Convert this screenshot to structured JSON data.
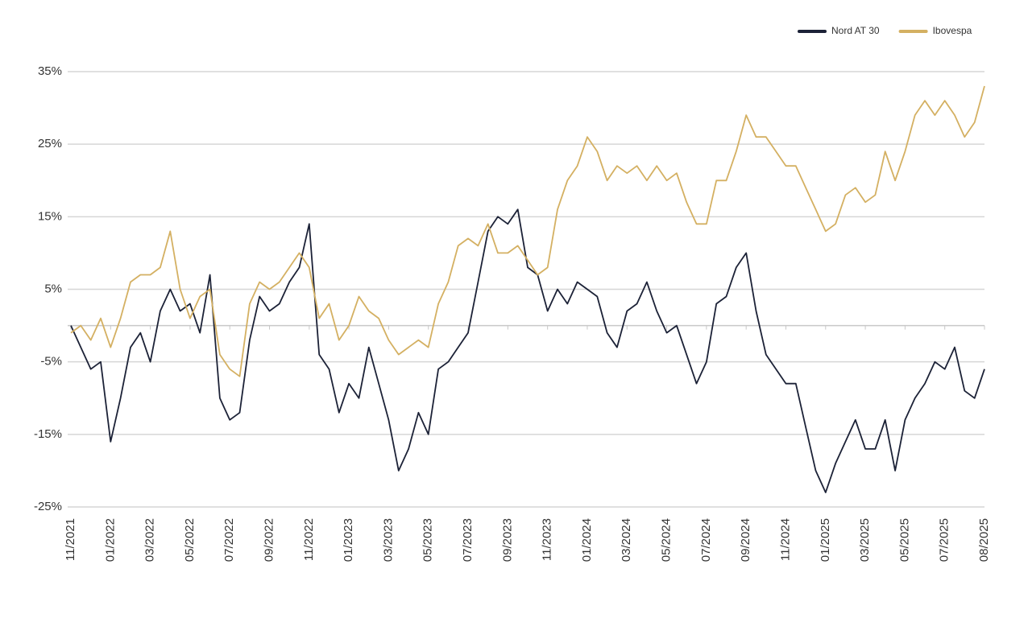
{
  "chart_data": {
    "type": "line",
    "categories": [
      "11/2021",
      null,
      null,
      null,
      "01/2022",
      null,
      null,
      null,
      "03/2022",
      null,
      null,
      null,
      "05/2022",
      null,
      null,
      null,
      "07/2022",
      null,
      null,
      null,
      "09/2022",
      null,
      null,
      null,
      "11/2022",
      null,
      null,
      null,
      "01/2023",
      null,
      null,
      null,
      "03/2023",
      null,
      null,
      null,
      "05/2023",
      null,
      null,
      null,
      "07/2023",
      null,
      null,
      null,
      "09/2023",
      null,
      null,
      null,
      "11/2023",
      null,
      null,
      null,
      "01/2024",
      null,
      null,
      null,
      "03/2024",
      null,
      null,
      null,
      "05/2024",
      null,
      null,
      null,
      "07/2024",
      null,
      null,
      null,
      "09/2024",
      null,
      null,
      null,
      "11/2024",
      null,
      null,
      null,
      "01/2025",
      null,
      null,
      null,
      "03/2025",
      null,
      null,
      null,
      "05/2025",
      null,
      null,
      null,
      "07/2025",
      null,
      null,
      null,
      "08/2025"
    ],
    "series": [
      {
        "name": "Nord AT 30",
        "color": "#1c2237",
        "values": [
          0,
          -3,
          -6,
          -5,
          -16,
          -10,
          -3,
          -1,
          -5,
          2,
          5,
          2,
          3,
          -1,
          7,
          -10,
          -13,
          -12,
          -2,
          4,
          2,
          3,
          6,
          8,
          14,
          -4,
          -6,
          -12,
          -8,
          -10,
          -3,
          -8,
          -13,
          -20,
          -17,
          -12,
          -15,
          -6,
          -5,
          -3,
          -1,
          6,
          13,
          15,
          14,
          16,
          8,
          7,
          2,
          5,
          3,
          6,
          5,
          4,
          -1,
          -3,
          2,
          3,
          6,
          2,
          -1,
          0,
          -4,
          -8,
          -5,
          3,
          4,
          8,
          10,
          2,
          -4,
          -6,
          -8,
          -8,
          -14,
          -20,
          -23,
          -19,
          -16,
          -13,
          -17,
          -17,
          -13,
          -20,
          -13,
          -10,
          -8,
          -5,
          -6,
          -3,
          -9,
          -10,
          -6
        ]
      },
      {
        "name": "Ibovespa",
        "color": "#d4b062",
        "values": [
          -1,
          0,
          -2,
          1,
          -3,
          1,
          6,
          7,
          7,
          8,
          13,
          5,
          1,
          4,
          5,
          -4,
          -6,
          -7,
          3,
          6,
          5,
          6,
          8,
          10,
          8,
          1,
          3,
          -2,
          0,
          4,
          2,
          1,
          -2,
          -4,
          -3,
          -2,
          -3,
          3,
          6,
          11,
          12,
          11,
          14,
          10,
          10,
          11,
          9,
          7,
          8,
          16,
          20,
          22,
          26,
          24,
          20,
          22,
          21,
          22,
          20,
          22,
          20,
          21,
          17,
          14,
          14,
          20,
          20,
          24,
          29,
          26,
          26,
          24,
          22,
          22,
          19,
          16,
          13,
          14,
          18,
          19,
          17,
          18,
          24,
          20,
          24,
          29,
          31,
          29,
          31,
          29,
          26,
          28,
          33
        ]
      }
    ],
    "ylim": [
      -25,
      35
    ],
    "yticks": [
      {
        "value": 35,
        "label": "35%"
      },
      {
        "value": 25,
        "label": "25%"
      },
      {
        "value": 15,
        "label": "15%"
      },
      {
        "value": 5,
        "label": "5%"
      },
      {
        "value": -5,
        "label": "-5%"
      },
      {
        "value": -15,
        "label": "-15%"
      },
      {
        "value": -25,
        "label": "-25%"
      }
    ],
    "grid": true,
    "legend": "top-right"
  }
}
